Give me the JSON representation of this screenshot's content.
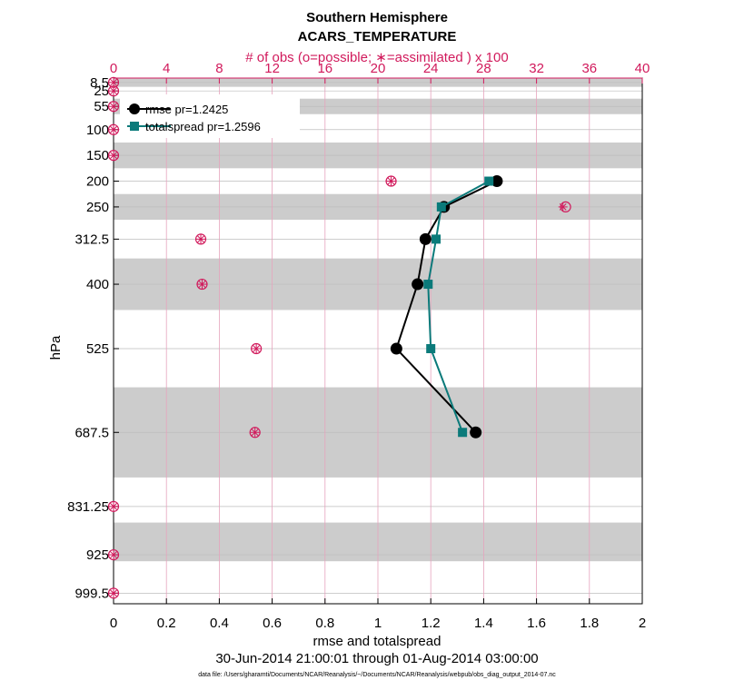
{
  "chart_data": {
    "type": "line",
    "title": "Southern Hemisphere",
    "subtitle": "ACARS_TEMPERATURE",
    "top_axis_label": "# of obs (o=possible; ∗=assimilated ) x 100",
    "xlabel": "rmse and totalspread",
    "ylabel": "hPa",
    "date_range": "30-Jun-2014 21:00:01 through 01-Aug-2014 03:00:00",
    "footnote": "data file: /Users/gharamti/Documents/NCAR/Reanalysis/~/Documents/NCAR/Reanalysis/webpub/obs_diag_output_2014-07.nc",
    "xlim": [
      0,
      2
    ],
    "x_ticks": [
      "0",
      "0.2",
      "0.4",
      "0.6",
      "0.8",
      "1",
      "1.2",
      "1.4",
      "1.6",
      "1.8",
      "2"
    ],
    "top_xlim": [
      0,
      40
    ],
    "top_ticks": [
      "0",
      "4",
      "8",
      "12",
      "16",
      "20",
      "24",
      "28",
      "32",
      "36",
      "40"
    ],
    "ylim": [
      1020,
      0
    ],
    "y_levels": [
      8.5,
      25,
      55,
      100,
      150,
      200,
      250,
      312.5,
      400,
      525,
      687.5,
      831.25,
      925,
      999.5
    ],
    "y_tick_labels": [
      "8.5",
      "25",
      "55",
      "100",
      "150",
      "200",
      "250",
      "312.5",
      "400",
      "525",
      "687.5",
      "831.25",
      "925",
      "999.5"
    ],
    "grey_bands": [
      [
        0,
        17
      ],
      [
        40,
        70
      ],
      [
        125,
        175
      ],
      [
        225,
        275
      ],
      [
        350,
        450
      ],
      [
        600,
        775
      ],
      [
        862.5,
        937.5
      ]
    ],
    "grid": true,
    "legend_position": "top-left",
    "series": [
      {
        "name": "rmse pr=1.2425",
        "color": "#000000",
        "marker": "circle",
        "points": [
          [
            1.45,
            200
          ],
          [
            1.25,
            250
          ],
          [
            1.18,
            312.5
          ],
          [
            1.15,
            400
          ],
          [
            1.07,
            525
          ],
          [
            1.37,
            687.5
          ]
        ]
      },
      {
        "name": "totalspread pr=1.2596",
        "color": "#0b7a7a",
        "marker": "square",
        "points": [
          [
            1.42,
            200
          ],
          [
            1.24,
            250
          ],
          [
            1.22,
            312.5
          ],
          [
            1.19,
            400
          ],
          [
            1.2,
            525
          ],
          [
            1.32,
            687.5
          ]
        ]
      }
    ],
    "obs_counts": {
      "color": "#d11a5c",
      "possible": [
        [
          0,
          8.5
        ],
        [
          0,
          25
        ],
        [
          0,
          55
        ],
        [
          0,
          100
        ],
        [
          0,
          150
        ],
        [
          21,
          200
        ],
        [
          34.2,
          250
        ],
        [
          6.6,
          312.5
        ],
        [
          6.7,
          400
        ],
        [
          10.8,
          525
        ],
        [
          10.7,
          687.5
        ],
        [
          0,
          831.25
        ],
        [
          0,
          925
        ],
        [
          0,
          999.5
        ]
      ],
      "assimilated": [
        [
          0,
          8.5
        ],
        [
          0,
          25
        ],
        [
          0,
          55
        ],
        [
          0,
          100
        ],
        [
          0,
          150
        ],
        [
          21,
          200
        ],
        [
          34.0,
          250
        ],
        [
          6.6,
          312.5
        ],
        [
          6.7,
          400
        ],
        [
          10.8,
          525
        ],
        [
          10.7,
          687.5
        ],
        [
          0,
          831.25
        ],
        [
          0,
          925
        ],
        [
          0,
          999.5
        ]
      ]
    }
  }
}
